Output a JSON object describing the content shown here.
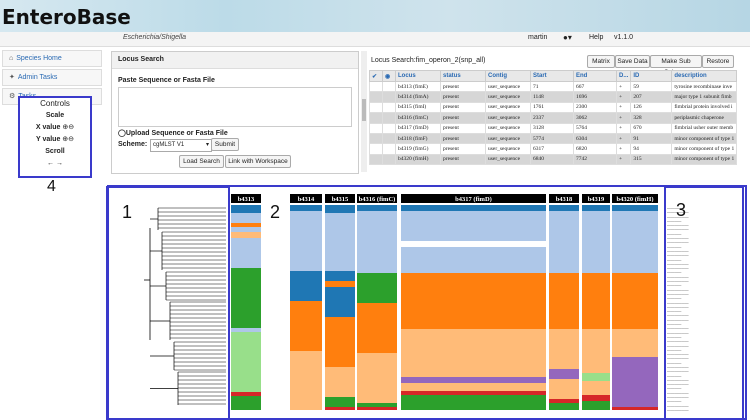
{
  "app": {
    "title": "EnteroBase",
    "organism": "Escherichia/Shigella",
    "user": "martin",
    "user_icon": "user-icon",
    "help": "Help",
    "version": "v1.1.0"
  },
  "sidebar": {
    "items": [
      {
        "label": "Species Home",
        "icon": "home-icon"
      },
      {
        "label": "Admin Tasks",
        "icon": "wrench-icon"
      },
      {
        "label": "Tasks",
        "icon": "gear-icon"
      }
    ]
  },
  "controls": {
    "title": "Controls",
    "scale": "Scale",
    "x_value": "X value",
    "y_value": "Y value",
    "scroll": "Scroll",
    "plus_icon": "+",
    "minus_icon": "-",
    "arrows": "← →"
  },
  "annotations": {
    "n1": "1",
    "n2": "2",
    "n3": "3",
    "n4": "4"
  },
  "locus_search": {
    "header": "Locus Search",
    "paste_label": "Paste Sequence or Fasta File",
    "upload_label": "Upload Sequence or Fasta File",
    "scheme_label": "Scheme:",
    "scheme_value": "cgMLST V1",
    "submit": "Submit",
    "load_search": "Load Search",
    "link_workspace": "Link with Workspace"
  },
  "results": {
    "title": "Locus Search:fim_operon_2(snp_all)",
    "buttons": {
      "matrix": "Matrix",
      "save": "Save Data",
      "make_sub": "Make Sub Scheme",
      "restore": "Restore"
    },
    "columns": [
      "Locus",
      "status",
      "Contig",
      "Start",
      "End",
      "D...",
      "ID",
      "description"
    ],
    "rows": [
      [
        "b4313 (fimE)",
        "present",
        "user_sequence",
        "71",
        "667",
        "+",
        "59",
        "tyrosine recombinase inve"
      ],
      [
        "b4314 (fimA)",
        "present",
        "user_sequence",
        "1148",
        "1696",
        "+",
        "207",
        "major type 1 subunit fimb"
      ],
      [
        "b4315 (fimI)",
        "present",
        "user_sequence",
        "1761",
        "2300",
        "+",
        "126",
        "fimbrial protein involved i"
      ],
      [
        "b4316 (fimC)",
        "present",
        "user_sequence",
        "2337",
        "3062",
        "+",
        "328",
        "periplasmic chaperone"
      ],
      [
        "b4317 (fimD)",
        "present",
        "user_sequence",
        "3128",
        "5764",
        "+",
        "670",
        "fimbrial usher outer memb"
      ],
      [
        "b4318 (fimF)",
        "present",
        "user_sequence",
        "5774",
        "6304",
        "+",
        "91",
        "minor component of type 1"
      ],
      [
        "b4319 (fimG)",
        "present",
        "user_sequence",
        "6317",
        "6820",
        "+",
        "94",
        "minor component of type 1"
      ],
      [
        "b4320 (fimH)",
        "present",
        "user_sequence",
        "6840",
        "7742",
        "+",
        "315",
        "minor component of type 1"
      ]
    ]
  },
  "loci_headers": [
    "b4313",
    "b4314",
    "b4315",
    "b4316 (fimC)",
    "b4317 (fimD)",
    "b4318",
    "b4319",
    "b4320 (fimH)"
  ],
  "colors": {
    "blue_dark": "#1f77b4",
    "blue_light": "#aec7e8",
    "orange": "#ff7f0e",
    "orange_light": "#ffbb78",
    "green": "#2ca02c",
    "green_light": "#98df8a",
    "red": "#d62728",
    "purple": "#9467bd",
    "frame": "#3a3acb"
  }
}
